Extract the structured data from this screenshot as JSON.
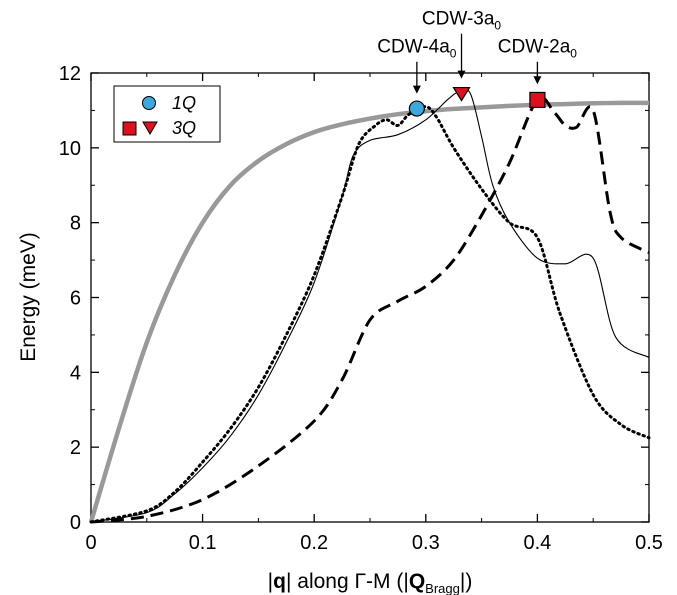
{
  "chart_data": {
    "type": "line",
    "xlabel": {
      "pre": "|",
      "bold1": "q",
      "mid": "| along Γ-M (|",
      "bold2": "Q",
      "sub": "Bragg",
      "post": "|)"
    },
    "ylabel": "Energy (meV)",
    "xlim": [
      0,
      0.5
    ],
    "ylim": [
      0,
      12
    ],
    "xticks": [
      "0",
      "0.1",
      "0.2",
      "0.3",
      "0.4",
      "0.5"
    ],
    "yticks": [
      "0",
      "2",
      "4",
      "6",
      "8",
      "10",
      "12"
    ],
    "grid": false,
    "legend_position": "top-left",
    "legend": [
      {
        "label": "1Q",
        "markers": [
          "circle-blue"
        ]
      },
      {
        "label": "3Q",
        "markers": [
          "square-red",
          "triangle-down-red"
        ]
      }
    ],
    "series": [
      {
        "style": "gray-thick-solid",
        "color": "#999999",
        "x": [
          0,
          0.025,
          0.05,
          0.075,
          0.1,
          0.125,
          0.15,
          0.175,
          0.2,
          0.225,
          0.25,
          0.275,
          0.3,
          0.325,
          0.35,
          0.375,
          0.4,
          0.425,
          0.45,
          0.475,
          0.5
        ],
        "y": [
          0,
          2.5,
          4.8,
          6.6,
          8.0,
          9.0,
          9.65,
          10.1,
          10.42,
          10.63,
          10.78,
          10.9,
          10.98,
          11.04,
          11.08,
          11.12,
          11.15,
          11.17,
          11.19,
          11.2,
          11.2
        ]
      },
      {
        "style": "black-thin-solid",
        "color": "#000000",
        "x": [
          0,
          0.05,
          0.075,
          0.1,
          0.125,
          0.15,
          0.175,
          0.2,
          0.225,
          0.235,
          0.25,
          0.275,
          0.3,
          0.32,
          0.33,
          0.34,
          0.35,
          0.36,
          0.375,
          0.4,
          0.425,
          0.45,
          0.47,
          0.5
        ],
        "y": [
          0,
          0.25,
          0.75,
          1.45,
          2.3,
          3.4,
          4.8,
          6.4,
          8.7,
          9.8,
          10.2,
          10.35,
          10.75,
          11.3,
          11.5,
          11.45,
          10.3,
          9.0,
          8.0,
          7.05,
          6.9,
          7.05,
          4.95,
          4.4
        ]
      },
      {
        "style": "black-dotted",
        "color": "#000000",
        "x": [
          0,
          0.05,
          0.075,
          0.1,
          0.125,
          0.15,
          0.175,
          0.2,
          0.225,
          0.24,
          0.255,
          0.265,
          0.275,
          0.285,
          0.3,
          0.31,
          0.325,
          0.35,
          0.375,
          0.4,
          0.42,
          0.45,
          0.475,
          0.5
        ],
        "y": [
          0,
          0.3,
          0.8,
          1.6,
          2.5,
          3.6,
          5.0,
          6.6,
          8.7,
          10.1,
          10.6,
          10.75,
          10.6,
          10.9,
          11.1,
          10.8,
          10.0,
          8.9,
          8.0,
          7.6,
          5.6,
          3.4,
          2.6,
          2.25
        ]
      },
      {
        "style": "black-dashed",
        "color": "#000000",
        "x": [
          0,
          0.05,
          0.1,
          0.15,
          0.2,
          0.225,
          0.25,
          0.275,
          0.3,
          0.325,
          0.35,
          0.375,
          0.4,
          0.415,
          0.425,
          0.435,
          0.45,
          0.465,
          0.475,
          0.5
        ],
        "y": [
          0,
          0.15,
          0.6,
          1.5,
          2.7,
          3.8,
          5.4,
          5.9,
          6.3,
          7.0,
          8.2,
          9.6,
          11.3,
          10.95,
          10.6,
          10.55,
          11.0,
          8.3,
          7.6,
          7.2
        ]
      }
    ],
    "markers": [
      {
        "shape": "circle",
        "color": "#3ea8dc",
        "x": 0.292,
        "y": 11.05
      },
      {
        "shape": "triangle-down",
        "color": "#dd1020",
        "x": 0.332,
        "y": 11.45
      },
      {
        "shape": "square",
        "color": "#dd1020",
        "x": 0.4,
        "y": 11.28
      }
    ],
    "annotations": [
      {
        "text": "CDW-4a",
        "sub": "0",
        "x": 0.292,
        "y_text": 12.55,
        "y_arrow_start": 12.3,
        "y_arrow_end": 11.45
      },
      {
        "text": "CDW-3a",
        "sub": "0",
        "x": 0.332,
        "y_text": 13.3,
        "y_arrow_start": 13.05,
        "y_arrow_end": 11.85
      },
      {
        "text": "CDW-2a",
        "sub": "0",
        "x": 0.4,
        "y_text": 12.55,
        "y_arrow_start": 12.3,
        "y_arrow_end": 11.7
      }
    ]
  }
}
